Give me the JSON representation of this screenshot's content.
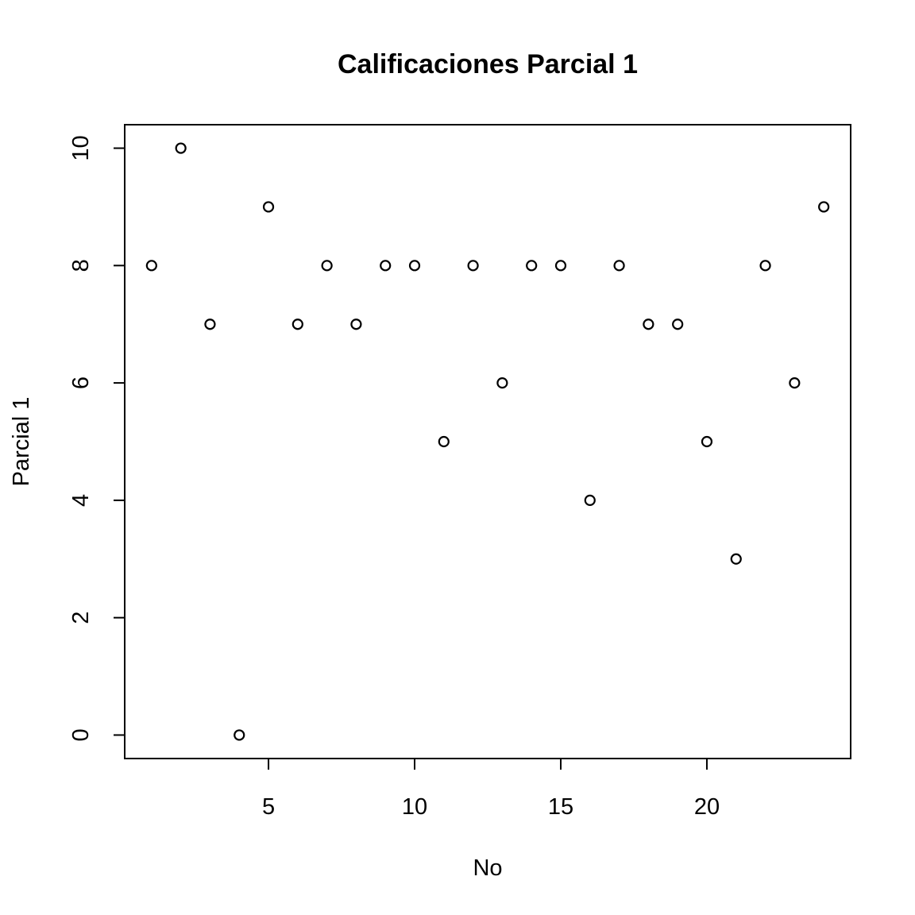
{
  "chart_data": {
    "type": "scatter",
    "title": "Calificaciones Parcial 1",
    "xlabel": "No",
    "ylabel": "Parcial 1",
    "xlim": [
      0.08,
      24.92
    ],
    "ylim": [
      -0.4,
      10.4
    ],
    "x_ticks": [
      5,
      10,
      15,
      20
    ],
    "y_ticks": [
      0,
      2,
      4,
      6,
      8,
      10
    ],
    "marker": "open-circle",
    "grid": false,
    "legend": "none",
    "x": [
      1,
      2,
      3,
      4,
      5,
      6,
      7,
      8,
      9,
      10,
      11,
      12,
      13,
      14,
      15,
      16,
      17,
      18,
      19,
      20,
      21,
      22,
      23,
      24
    ],
    "y": [
      8,
      10,
      7,
      0,
      9,
      7,
      8,
      7,
      8,
      8,
      5,
      8,
      6,
      8,
      8,
      4,
      8,
      7,
      7,
      5,
      3,
      8,
      6,
      9
    ]
  },
  "colors": {
    "background": "#ffffff",
    "ink": "#000000"
  }
}
